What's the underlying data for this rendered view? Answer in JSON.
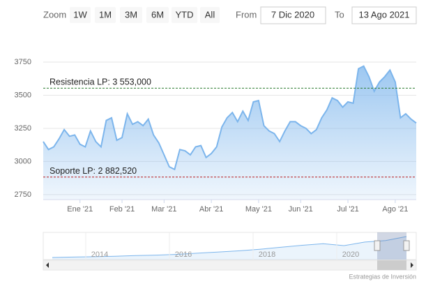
{
  "chart_data": {
    "type": "area",
    "range_selector": {
      "zoom_label": "Zoom",
      "buttons": [
        "1W",
        "1M",
        "3M",
        "6M",
        "YTD",
        "All"
      ],
      "from_label": "From",
      "from": "7 Dic 2020",
      "to_label": "To",
      "to": "13 Ago 2021"
    },
    "categories": [
      null,
      null,
      null,
      null,
      null,
      null,
      null,
      "Ene '21",
      null,
      null,
      null,
      null,
      null,
      null,
      null,
      "Feb '21",
      null,
      null,
      null,
      null,
      null,
      null,
      null,
      "Mar '21",
      null,
      null,
      null,
      null,
      null,
      null,
      null,
      null,
      "Abr '21",
      null,
      null,
      null,
      null,
      null,
      null,
      null,
      null,
      "May '21",
      null,
      null,
      null,
      null,
      null,
      null,
      null,
      "Jun '21",
      null,
      null,
      null,
      null,
      null,
      null,
      null,
      null,
      "Jul '21",
      null,
      null,
      null,
      null,
      null,
      null,
      null,
      null,
      "Ago '21",
      null,
      null,
      null,
      null
    ],
    "series": [
      {
        "color": "#7cb5ec",
        "values": [
          3150,
          3090,
          3110,
          3170,
          3240,
          3190,
          3200,
          3130,
          3110,
          3230,
          3150,
          3110,
          3310,
          3330,
          3160,
          3180,
          3360,
          3280,
          3300,
          3270,
          3320,
          3200,
          3140,
          3050,
          2960,
          2940,
          3090,
          3080,
          3050,
          3110,
          3120,
          3030,
          3060,
          3110,
          3260,
          3330,
          3370,
          3300,
          3380,
          3310,
          3450,
          3460,
          3270,
          3230,
          3210,
          3150,
          3230,
          3300,
          3300,
          3270,
          3250,
          3210,
          3240,
          3330,
          3390,
          3480,
          3460,
          3410,
          3450,
          3440,
          3700,
          3720,
          3640,
          3530,
          3600,
          3640,
          3690,
          3600,
          3330,
          3360,
          3320,
          3290
        ]
      }
    ],
    "ylim": [
      2718,
      3892
    ],
    "yticks": [
      2750,
      3000,
      3250,
      3500,
      3750
    ],
    "grid": true,
    "plot_lines": [
      {
        "value": 3553,
        "label": "Resistencia LP: 3 553,000",
        "color": "#2e7d32"
      },
      {
        "value": 2882.52,
        "label": "Soporte LP: 2 882,520",
        "color": "#b71c1c"
      }
    ],
    "navigator": {
      "labels": [
        "2014",
        "2016",
        "2018",
        "2020"
      ],
      "values": [
        1050,
        1100,
        1150,
        1200,
        1300,
        1350,
        1450,
        1600,
        1750,
        1900,
        2100,
        2350,
        2600,
        2800,
        2550,
        3000,
        3200,
        3700
      ]
    },
    "credits": "Estrategias de Inversión"
  }
}
